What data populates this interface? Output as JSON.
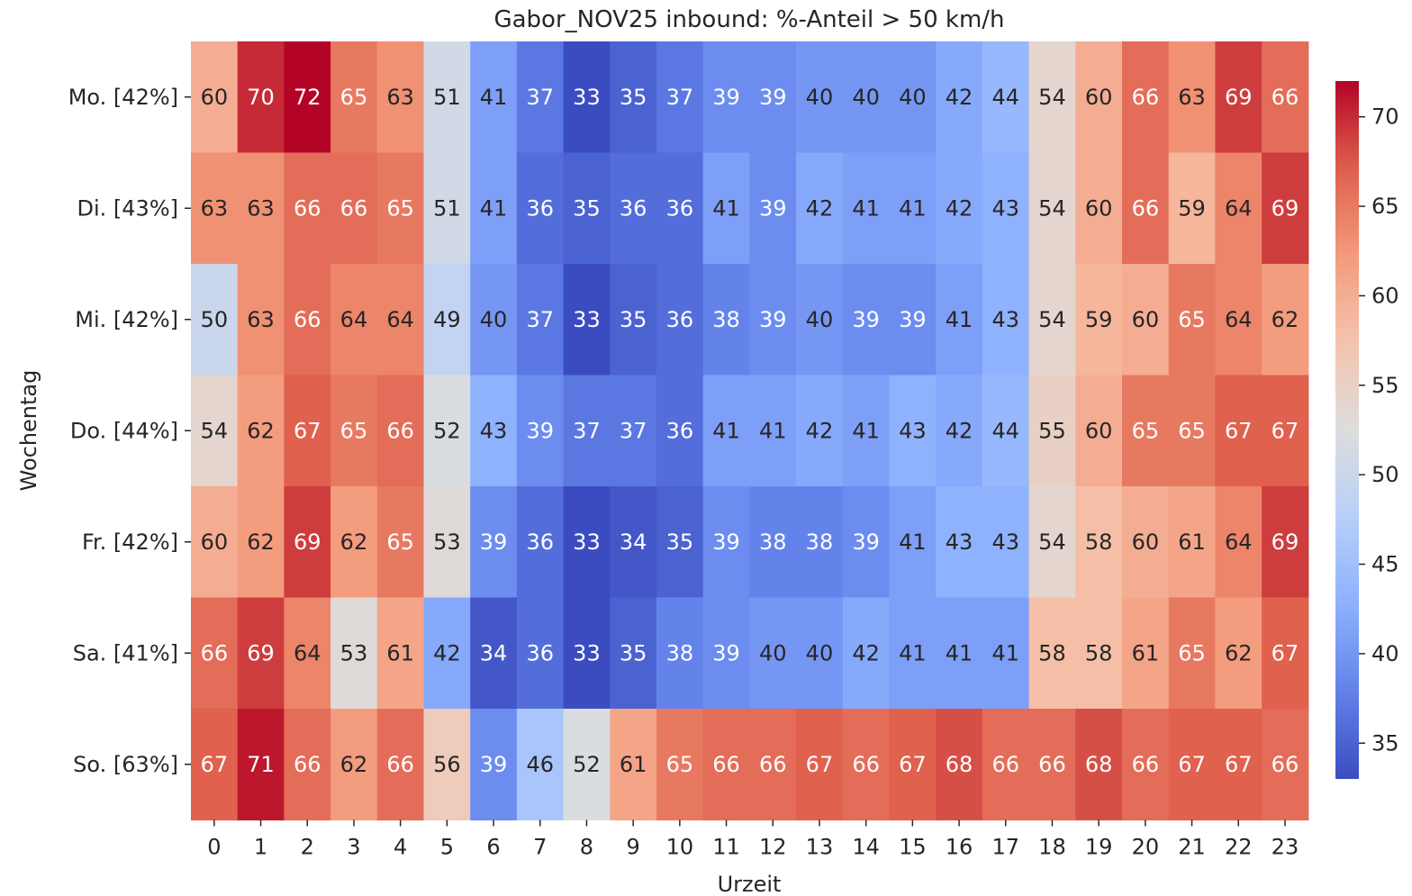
{
  "chart_data": {
    "type": "heatmap",
    "title": "Gabor_NOV25 inbound: %-Anteil > 50 km/h",
    "xlabel": "Urzeit",
    "ylabel": "Wochentag",
    "x_categories": [
      "0",
      "1",
      "2",
      "3",
      "4",
      "5",
      "6",
      "7",
      "8",
      "9",
      "10",
      "11",
      "12",
      "13",
      "14",
      "15",
      "16",
      "17",
      "18",
      "19",
      "20",
      "21",
      "22",
      "23"
    ],
    "y_categories": [
      "Mo. [42%]",
      "Di. [43%]",
      "Mi. [42%]",
      "Do. [44%]",
      "Fr. [42%]",
      "Sa. [41%]",
      "So. [63%]"
    ],
    "values": [
      [
        60,
        70,
        72,
        65,
        63,
        51,
        41,
        37,
        33,
        35,
        37,
        39,
        39,
        40,
        40,
        40,
        42,
        44,
        54,
        60,
        66,
        63,
        69,
        66
      ],
      [
        63,
        63,
        66,
        66,
        65,
        51,
        41,
        36,
        35,
        36,
        36,
        41,
        39,
        42,
        41,
        41,
        42,
        43,
        54,
        60,
        66,
        59,
        64,
        69
      ],
      [
        50,
        63,
        66,
        64,
        64,
        49,
        40,
        37,
        33,
        35,
        36,
        38,
        39,
        40,
        39,
        39,
        41,
        43,
        54,
        59,
        60,
        65,
        64,
        62
      ],
      [
        54,
        62,
        67,
        65,
        66,
        52,
        43,
        39,
        37,
        37,
        36,
        41,
        41,
        42,
        41,
        43,
        42,
        44,
        55,
        60,
        65,
        65,
        67,
        67
      ],
      [
        60,
        62,
        69,
        62,
        65,
        53,
        39,
        36,
        33,
        34,
        35,
        39,
        38,
        38,
        39,
        41,
        43,
        43,
        54,
        58,
        60,
        61,
        64,
        69
      ],
      [
        66,
        69,
        64,
        53,
        61,
        42,
        34,
        36,
        33,
        35,
        38,
        39,
        40,
        40,
        42,
        41,
        41,
        41,
        58,
        58,
        61,
        65,
        62,
        67
      ],
      [
        67,
        71,
        66,
        62,
        66,
        56,
        39,
        46,
        52,
        61,
        65,
        66,
        66,
        67,
        66,
        67,
        68,
        66,
        66,
        68,
        66,
        67,
        67,
        66
      ]
    ],
    "colorbar": {
      "colormap": "coolwarm",
      "min": 33,
      "max": 72,
      "ticks": [
        35,
        40,
        45,
        50,
        55,
        60,
        65,
        70
      ]
    },
    "legend": "colorbar right",
    "grid": false
  }
}
